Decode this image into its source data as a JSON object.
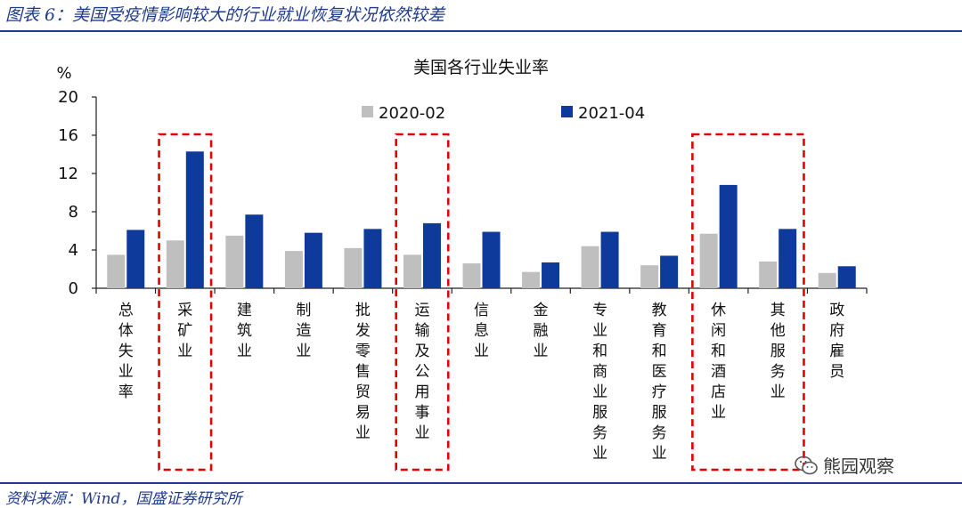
{
  "figure": {
    "caption": "图表 6：美国受疫情影响较大的行业就业恢复状况依然较差",
    "source": "资料来源：Wind，国盛证券研究所",
    "watermark": "熊园观察"
  },
  "chart_data": {
    "type": "bar",
    "title": "美国各行业失业率",
    "ylabel": "%",
    "ylim": [
      0,
      20
    ],
    "yticks": [
      0,
      4,
      8,
      12,
      16,
      20
    ],
    "grid": false,
    "legend_position": "top",
    "categories": [
      "总体失业率",
      "采矿业",
      "建筑业",
      "制造业",
      "批发零售贸易业",
      "运输及公用事业",
      "信息业",
      "金融业",
      "专业和商业服务业",
      "教育和医疗服务业",
      "休闲和酒店业",
      "其他服务业",
      "政府雇员"
    ],
    "series": [
      {
        "name": "2020-02",
        "color": "#bfbfbf",
        "values": [
          3.5,
          5.0,
          5.5,
          3.9,
          4.2,
          3.5,
          2.6,
          1.7,
          4.4,
          2.4,
          5.7,
          2.8,
          1.6
        ]
      },
      {
        "name": "2021-04",
        "color": "#0e3a9c",
        "values": [
          6.1,
          14.3,
          7.7,
          5.8,
          6.2,
          6.8,
          5.9,
          2.7,
          5.9,
          3.4,
          10.8,
          6.2,
          2.3
        ]
      }
    ],
    "highlight_boxes": [
      [
        1,
        1
      ],
      [
        5,
        5
      ],
      [
        10,
        11
      ]
    ],
    "highlight_color": "#e00000"
  }
}
